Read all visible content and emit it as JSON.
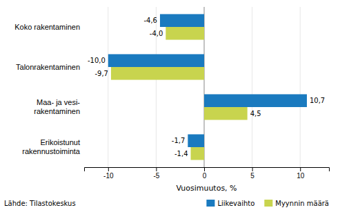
{
  "chart_data": {
    "type": "bar",
    "orientation": "horizontal",
    "categories": [
      "Koko rakentaminen",
      "Talonrakentaminen",
      "Maa- ja vesi-\nrakentaminen",
      "Erikoistunut\nrakennustoiminta"
    ],
    "series": [
      {
        "name": "Liikevaihto",
        "color": "#1a7abf",
        "values": [
          -4.6,
          -10.0,
          10.7,
          -1.7
        ],
        "value_labels": [
          "-4,6",
          "-10,0",
          "10,7",
          "-1,7"
        ]
      },
      {
        "name": "Myynnin määrä",
        "color": "#c8d44e",
        "values": [
          -4.0,
          -9.7,
          4.5,
          -1.4
        ],
        "value_labels": [
          "-4,0",
          "-9,7",
          "4,5",
          "-1,4"
        ]
      }
    ],
    "x_label": "Vuosimuutos, %",
    "xlim": [
      -12.5,
      13.0
    ],
    "xticks": [
      -10,
      -5,
      0,
      5,
      10
    ],
    "grid": true,
    "legend": "lower right",
    "data_labels": true,
    "annotations": [
      "Lähde: Tilastokeskus"
    ]
  }
}
